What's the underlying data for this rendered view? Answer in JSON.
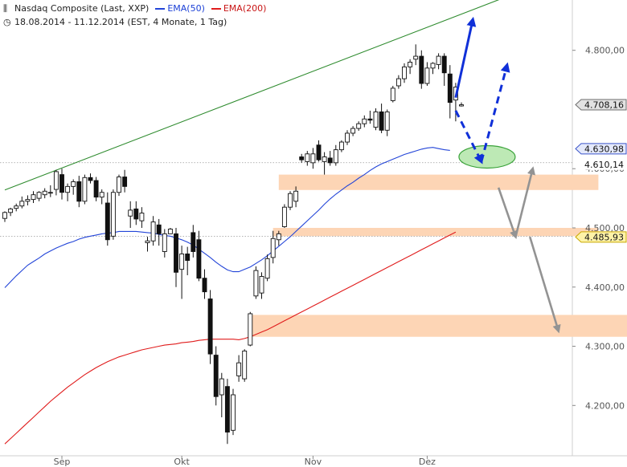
{
  "header": {
    "title": "Nasdaq Composite (Last, XXP)",
    "ema50_label": "EMA(50)",
    "ema200_label": "EMA(200)",
    "period": "18.08.2014 - 11.12.2014 (EST, 4 Monate, 1 Tag)",
    "chart_icon": "candlestick-icon",
    "clock_icon": "clock-icon"
  },
  "colors": {
    "ema50": "#2345d8",
    "ema200": "#e01c1c",
    "trendline": "#2e8b2e",
    "zone": "#fdd5b5",
    "arrow_blue": "#1030d8",
    "arrow_gray": "#939393",
    "target_fill": "#bde9b5",
    "target_stroke": "#3aa33a"
  },
  "chart_data": {
    "type": "candlestick",
    "title": "Nasdaq Composite (Last, XXP)",
    "y_ticks": [
      "4.200,00",
      "4.300,00",
      "4.400,00",
      "4.500,00",
      "4.600,00",
      "4.800,00"
    ],
    "y_tick_values": [
      4200,
      4300,
      4400,
      4500,
      4600,
      4800
    ],
    "ylim": [
      4115,
      4885
    ],
    "x_ticks": [
      {
        "label": "Sep",
        "index": 10
      },
      {
        "label": "Okt",
        "index": 31
      },
      {
        "label": "Nov",
        "index": 54
      },
      {
        "label": "Dez",
        "index": 74
      }
    ],
    "price_labels": [
      {
        "text": "4.708,16",
        "value": 4708.16,
        "style": "gray"
      },
      {
        "text": "4.630,98",
        "value": 4630.98,
        "style": "blue"
      },
      {
        "text": "4.610,14",
        "value": 4610.14,
        "style": "plain"
      },
      {
        "text": "4.485,93",
        "value": 4485.93,
        "style": "yellow"
      }
    ],
    "dotted_levels": [
      4610.14,
      4485.93
    ],
    "zones": [
      {
        "from_index": 48,
        "to_index": 104,
        "low": 4564,
        "high": 4590
      },
      {
        "from_index": 47,
        "to_index": 104,
        "low": 4486,
        "high": 4500
      },
      {
        "from_index": 43,
        "to_index": 110,
        "low": 4316,
        "high": 4353
      }
    ],
    "trendline": [
      {
        "index": 0,
        "value": 4564
      },
      {
        "index": 98,
        "value": 4928
      }
    ],
    "candles": [
      [
        4516,
        4528,
        4510,
        4526
      ],
      [
        4526,
        4534,
        4520,
        4532
      ],
      [
        4533,
        4541,
        4528,
        4537
      ],
      [
        4537,
        4553,
        4533,
        4545
      ],
      [
        4545,
        4555,
        4538,
        4548
      ],
      [
        4548,
        4562,
        4542,
        4556
      ],
      [
        4550,
        4562,
        4545,
        4560
      ],
      [
        4556,
        4567,
        4550,
        4562
      ],
      [
        4560,
        4572,
        4552,
        4560
      ],
      [
        4565,
        4598,
        4555,
        4595
      ],
      [
        4590,
        4600,
        4548,
        4560
      ],
      [
        4560,
        4575,
        4545,
        4570
      ],
      [
        4570,
        4582,
        4556,
        4578
      ],
      [
        4578,
        4588,
        4535,
        4545
      ],
      [
        4545,
        4590,
        4540,
        4585
      ],
      [
        4585,
        4592,
        4575,
        4580
      ],
      [
        4580,
        4586,
        4545,
        4552
      ],
      [
        4552,
        4565,
        4540,
        4560
      ],
      [
        4542,
        4560,
        4470,
        4480
      ],
      [
        4486,
        4565,
        4480,
        4560
      ],
      [
        4560,
        4590,
        4554,
        4586
      ],
      [
        4586,
        4598,
        4560,
        4570
      ],
      [
        4520,
        4545,
        4500,
        4530
      ],
      [
        4532,
        4545,
        4505,
        4515
      ],
      [
        4512,
        4535,
        4500,
        4525
      ],
      [
        4475,
        4485,
        4460,
        4478
      ],
      [
        4478,
        4520,
        4470,
        4510
      ],
      [
        4505,
        4515,
        4470,
        4490
      ],
      [
        4460,
        4498,
        4450,
        4490
      ],
      [
        4490,
        4500,
        4492,
        4498
      ],
      [
        4490,
        4500,
        4400,
        4425
      ],
      [
        4430,
        4470,
        4380,
        4456
      ],
      [
        4456,
        4468,
        4420,
        4445
      ],
      [
        4492,
        4505,
        4450,
        4460
      ],
      [
        4480,
        4495,
        4410,
        4415
      ],
      [
        4415,
        4430,
        4380,
        4392
      ],
      [
        4380,
        4395,
        4270,
        4287
      ],
      [
        4285,
        4300,
        4200,
        4215
      ],
      [
        4218,
        4255,
        4180,
        4245
      ],
      [
        4232,
        4245,
        4135,
        4155
      ],
      [
        4158,
        4228,
        4150,
        4218
      ],
      [
        4250,
        4285,
        4240,
        4272
      ],
      [
        4245,
        4295,
        4240,
        4292
      ],
      [
        4302,
        4358,
        4300,
        4355
      ],
      [
        4385,
        4435,
        4380,
        4428
      ],
      [
        4390,
        4425,
        4380,
        4418
      ],
      [
        4415,
        4455,
        4410,
        4448
      ],
      [
        4450,
        4495,
        4440,
        4482
      ],
      [
        4480,
        4495,
        4470,
        4490
      ],
      [
        4502,
        4540,
        4500,
        4535
      ],
      [
        4535,
        4562,
        4530,
        4558
      ],
      [
        4545,
        4570,
        4535,
        4562
      ],
      [
        4620,
        4625,
        4610,
        4615
      ],
      [
        4612,
        4630,
        4605,
        4625
      ],
      [
        4610,
        4635,
        4600,
        4625
      ],
      [
        4640,
        4648,
        4612,
        4615
      ],
      [
        4612,
        4628,
        4590,
        4620
      ],
      [
        4618,
        4630,
        4605,
        4610
      ],
      [
        4610,
        4640,
        4605,
        4632
      ],
      [
        4632,
        4648,
        4628,
        4645
      ],
      [
        4645,
        4665,
        4640,
        4660
      ],
      [
        4660,
        4672,
        4655,
        4668
      ],
      [
        4668,
        4680,
        4664,
        4676
      ],
      [
        4676,
        4690,
        4670,
        4684
      ],
      [
        4684,
        4698,
        4676,
        4682
      ],
      [
        4670,
        4702,
        4665,
        4696
      ],
      [
        4696,
        4710,
        4660,
        4665
      ],
      [
        4665,
        4700,
        4655,
        4696
      ],
      [
        4715,
        4740,
        4712,
        4736
      ],
      [
        4740,
        4758,
        4735,
        4752
      ],
      [
        4752,
        4778,
        4745,
        4772
      ],
      [
        4772,
        4785,
        4760,
        4780
      ],
      [
        4785,
        4810,
        4775,
        4790
      ],
      [
        4790,
        4800,
        4735,
        4744
      ],
      [
        4744,
        4780,
        4740,
        4770
      ],
      [
        4770,
        4780,
        4760,
        4778
      ],
      [
        4776,
        4795,
        4768,
        4790
      ],
      [
        4790,
        4795,
        4740,
        4762
      ],
      [
        4760,
        4775,
        4685,
        4712
      ],
      [
        4716,
        4745,
        4680,
        4738
      ],
      [
        4706,
        4712,
        4705,
        4708
      ]
    ],
    "series": [
      {
        "name": "EMA(50)",
        "color": "#2345d8",
        "values": [
          4399,
          4409,
          4419,
          4428,
          4437,
          4443,
          4449,
          4456,
          4461,
          4466,
          4470,
          4474,
          4477,
          4481,
          4484,
          4486,
          4488,
          4490,
          4491,
          4492,
          4494,
          4494,
          4494,
          4494,
          4493,
          4492,
          4491,
          4489,
          4487,
          4486,
          4483,
          4480,
          4476,
          4471,
          4464,
          4457,
          4450,
          4442,
          4435,
          4429,
          4426,
          4426,
          4430,
          4434,
          4440,
          4446,
          4453,
          4461,
          4469,
          4477,
          4485,
          4494,
          4503,
          4512,
          4521,
          4530,
          4540,
          4549,
          4557,
          4564,
          4571,
          4577,
          4584,
          4590,
          4597,
          4603,
          4608,
          4612,
          4616,
          4620,
          4624,
          4627,
          4630,
          4633,
          4635,
          4636,
          4634,
          4632,
          4631
        ]
      },
      {
        "name": "EMA(200)",
        "color": "#e01c1c",
        "values": [
          4135,
          4144,
          4153,
          4162,
          4171,
          4180,
          4189,
          4198,
          4207,
          4215,
          4223,
          4231,
          4238,
          4245,
          4252,
          4258,
          4264,
          4269,
          4274,
          4278,
          4282,
          4285,
          4288,
          4291,
          4294,
          4296,
          4298,
          4300,
          4302,
          4303,
          4304,
          4306,
          4307,
          4308,
          4310,
          4311,
          4312,
          4312,
          4312,
          4312,
          4312,
          4311,
          4313,
          4316,
          4320,
          4324,
          4328,
          4333,
          4338,
          4343,
          4348,
          4353,
          4358,
          4363,
          4368,
          4373,
          4378,
          4383,
          4388,
          4393,
          4398,
          4403,
          4408,
          4413,
          4418,
          4423,
          4428,
          4433,
          4438,
          4443,
          4448,
          4453,
          4458,
          4463,
          4468,
          4473,
          4478,
          4483,
          4488,
          4493
        ]
      }
    ],
    "projection_arrows": [
      {
        "style": "solid",
        "color": "#1030d8",
        "from": {
          "index": 79,
          "value": 4720
        },
        "to": {
          "index": 82,
          "value": 4852
        }
      },
      {
        "style": "dashed",
        "color": "#1030d8",
        "from": {
          "index": 79,
          "value": 4698
        },
        "to": {
          "index": 83.5,
          "value": 4612
        }
      },
      {
        "style": "dashed",
        "color": "#1030d8",
        "from": {
          "index": 83.5,
          "value": 4612
        },
        "to": {
          "index": 88,
          "value": 4775
        }
      },
      {
        "style": "solid",
        "color": "#939393",
        "from": {
          "index": 86.5,
          "value": 4568
        },
        "to": {
          "index": 89.5,
          "value": 4485
        }
      },
      {
        "style": "solid",
        "color": "#939393",
        "from": {
          "index": 89.5,
          "value": 4485
        },
        "to": {
          "index": 92.5,
          "value": 4600
        }
      },
      {
        "style": "solid",
        "color": "#939393",
        "from": {
          "index": 92,
          "value": 4485
        },
        "to": {
          "index": 97,
          "value": 4326
        }
      }
    ],
    "target_ellipse": {
      "index": 84.5,
      "value": 4620
    }
  }
}
